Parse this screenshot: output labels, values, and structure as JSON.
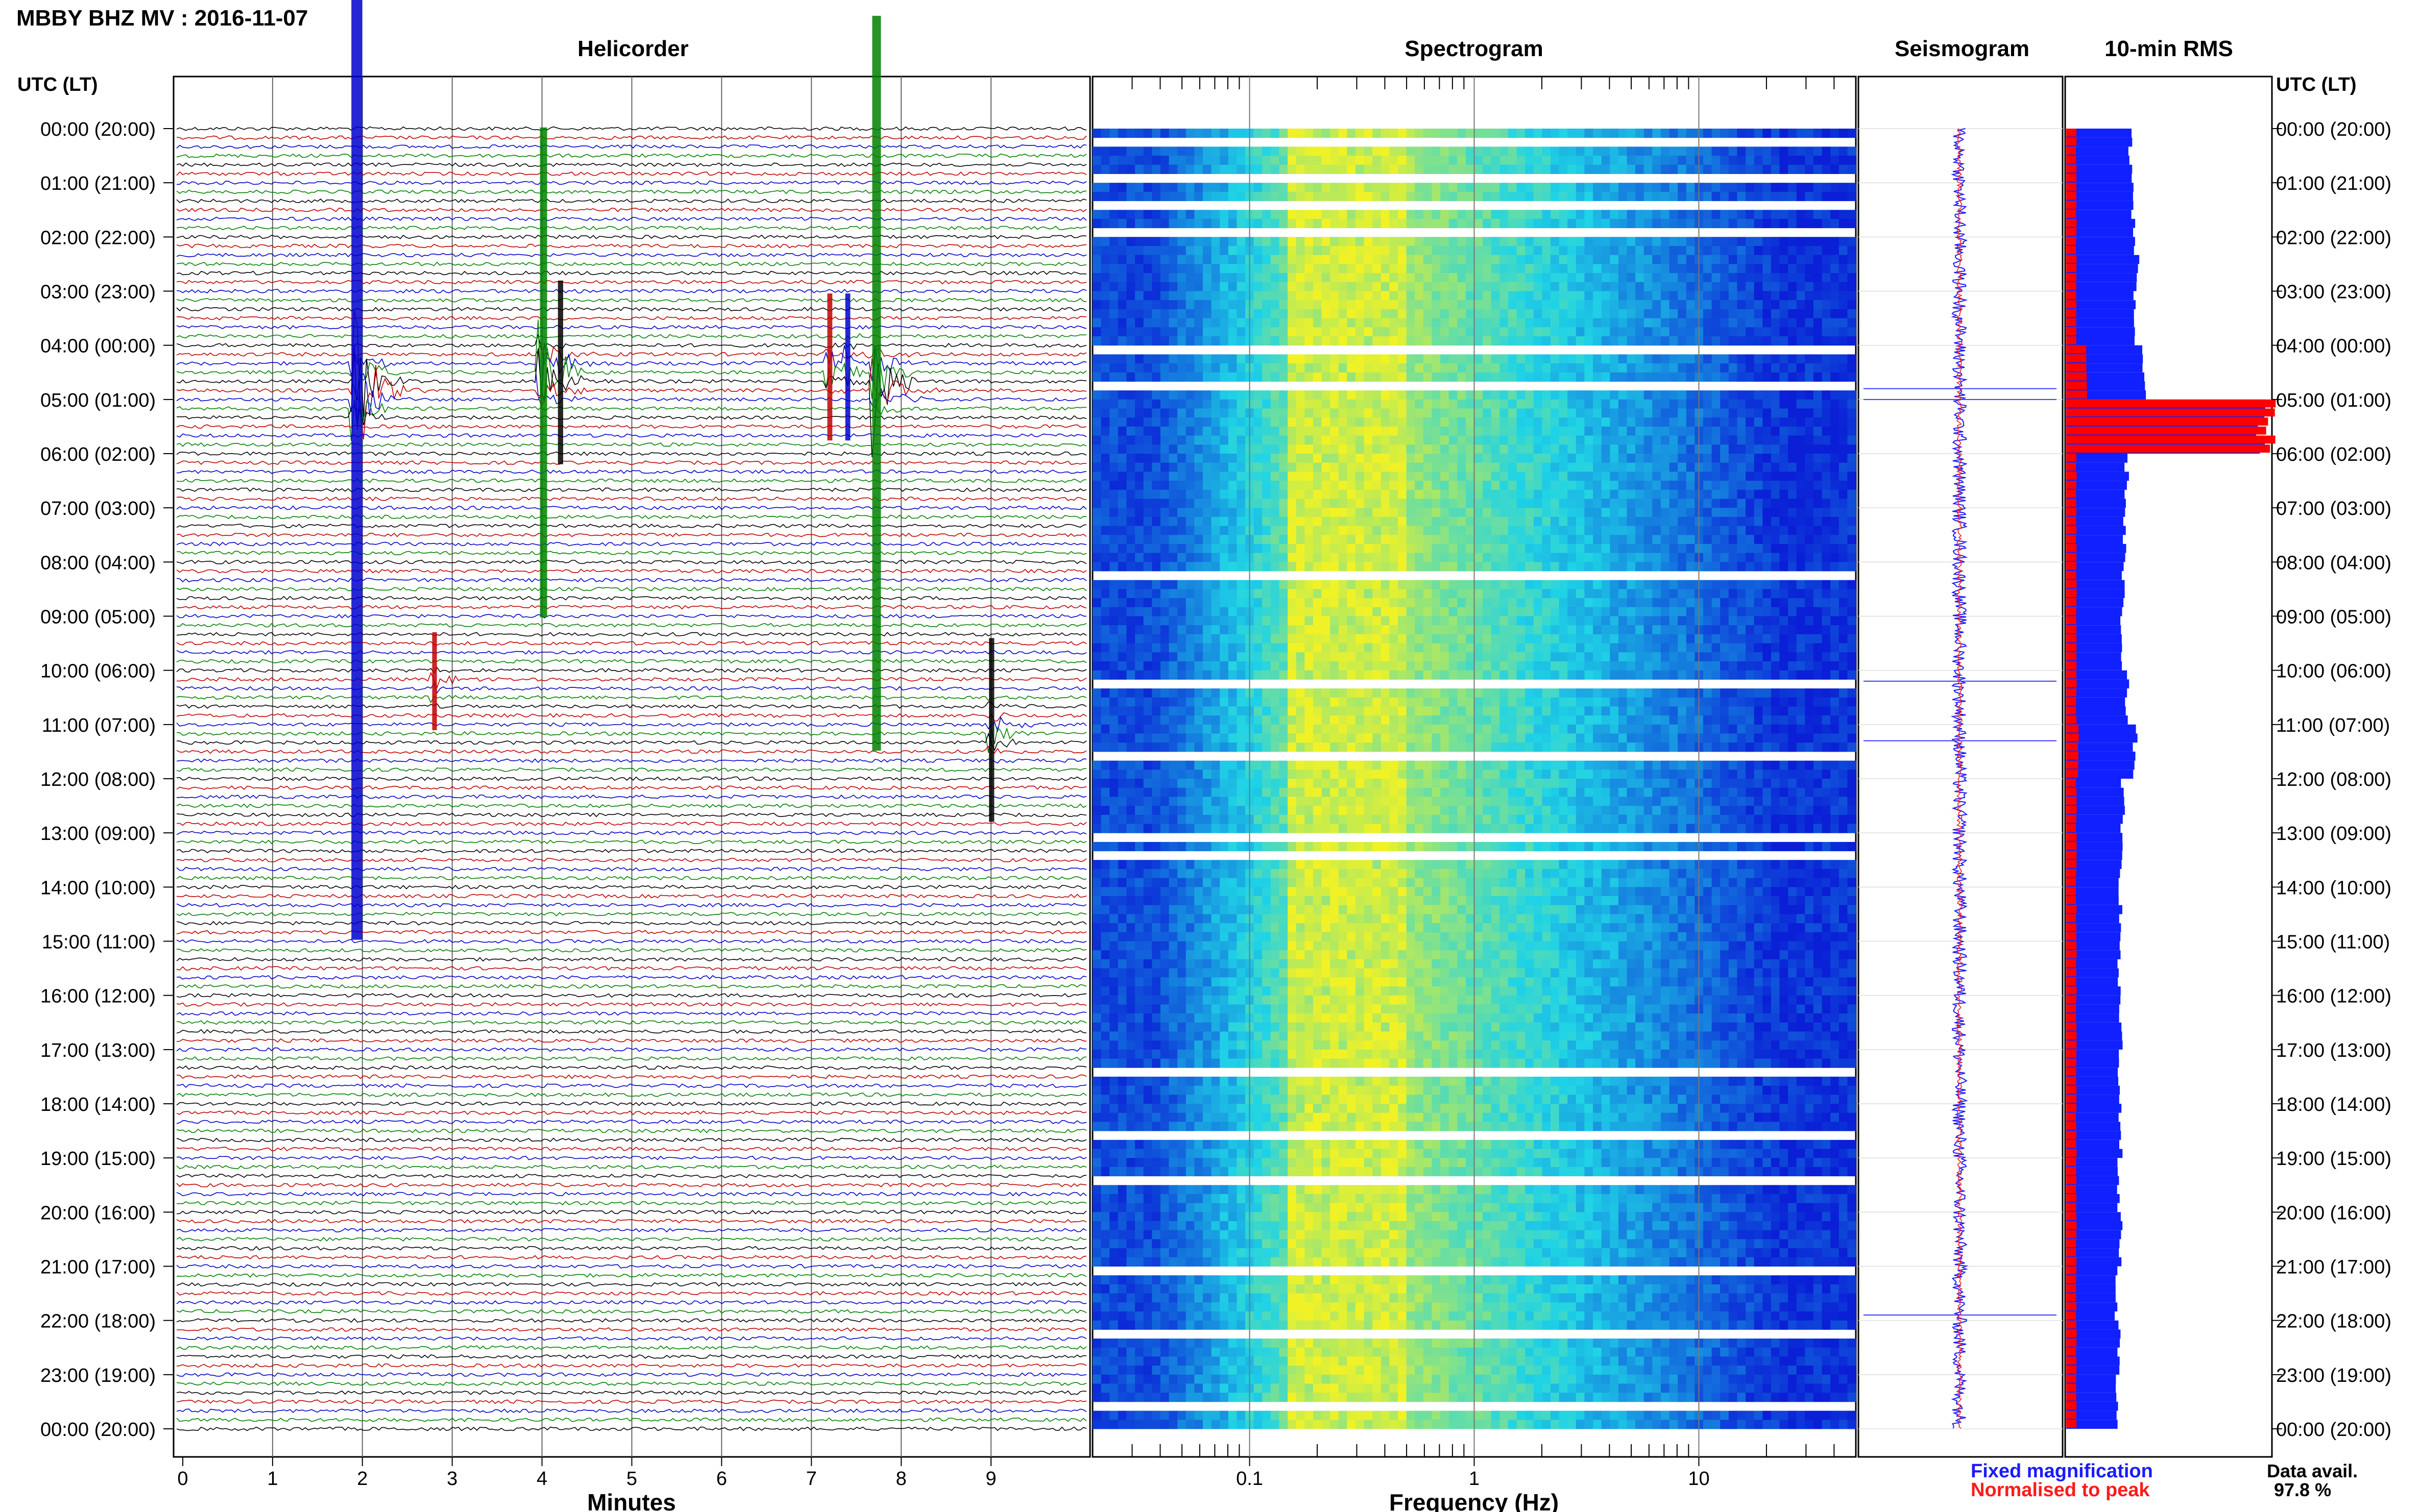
{
  "header": {
    "station_title": "MBBY BHZ MV : 2016-11-07"
  },
  "panels": {
    "helicorder": "Helicorder",
    "spectrogram": "Spectrogram",
    "seismogram": "Seismogram",
    "rms": "10-min RMS"
  },
  "axis": {
    "left_header": "UTC (LT)",
    "right_header": "UTC (LT)",
    "minutes_label": "Minutes",
    "frequency_label": "Frequency (Hz)",
    "minute_ticks": [
      "0",
      "1",
      "2",
      "3",
      "4",
      "5",
      "6",
      "7",
      "8",
      "9"
    ],
    "frequency_ticks": [
      "0.1",
      "1",
      "10"
    ]
  },
  "legend": {
    "fixed": "Fixed magnification",
    "normalised": "Normalised to peak",
    "fixed_color": "#1a1aff",
    "normalised_color": "#ff1a1a"
  },
  "availability": {
    "label": "Data avail.",
    "value": "97.8 %"
  },
  "colors": {
    "trace_cycle": [
      "#000000",
      "#c00000",
      "#0000cc",
      "#008000"
    ],
    "spec_low": "#0a1fd6",
    "spec_mid": "#1fd3e6",
    "spec_high": "#f1f226",
    "rms_fixed": "#1020ff",
    "rms_norm": "#ff0000"
  },
  "chart_data": [
    {
      "type": "line",
      "name": "helicorder",
      "title": "Helicorder",
      "xlabel": "Minutes",
      "xlim": [
        0,
        10
      ],
      "y_ticks_utc": [
        "00:00 (20:00)",
        "01:00 (21:00)",
        "02:00 (22:00)",
        "03:00 (23:00)",
        "04:00 (00:00)",
        "05:00 (01:00)",
        "06:00 (02:00)",
        "07:00 (03:00)",
        "08:00 (04:00)",
        "09:00 (05:00)",
        "10:00 (06:00)",
        "11:00 (07:00)",
        "12:00 (08:00)",
        "13:00 (09:00)",
        "14:00 (10:00)",
        "15:00 (11:00)",
        "16:00 (12:00)",
        "17:00 (13:00)",
        "18:00 (14:00)",
        "19:00 (15:00)",
        "20:00 (16:00)",
        "21:00 (17:00)",
        "22:00 (18:00)",
        "23:00 (19:00)",
        "00:00 (20:00)"
      ],
      "lines_per_hour": 6,
      "events": [
        {
          "minute": 1.9,
          "hour": 4.8,
          "amp": 9.0
        },
        {
          "minute": 4.0,
          "hour": 4.5,
          "amp": 4.0
        },
        {
          "minute": 4.2,
          "hour": 4.5,
          "amp": 1.5
        },
        {
          "minute": 7.2,
          "hour": 4.4,
          "amp": 1.2
        },
        {
          "minute": 7.4,
          "hour": 4.4,
          "amp": 1.2
        },
        {
          "minute": 7.7,
          "hour": 4.7,
          "amp": 6.0
        },
        {
          "minute": 9.0,
          "hour": 11.1,
          "amp": 1.5
        },
        {
          "minute": 2.8,
          "hour": 10.2,
          "amp": 0.8
        }
      ]
    },
    {
      "type": "heatmap",
      "name": "spectrogram",
      "title": "Spectrogram",
      "xlabel": "Frequency (Hz)",
      "x_scale": "log",
      "xlim": [
        0.02,
        50
      ],
      "peak_band_hz": [
        0.15,
        0.5
      ]
    },
    {
      "type": "line",
      "name": "seismogram",
      "title": "Seismogram",
      "events_hour": [
        4.8,
        5.0,
        10.2,
        11.3,
        21.9
      ]
    },
    {
      "type": "bar",
      "name": "rms",
      "title": "10-min RMS",
      "orientation": "horizontal",
      "hours": [
        0,
        1,
        2,
        3,
        4,
        5,
        6,
        7,
        8,
        9,
        10,
        11,
        12,
        13,
        14,
        15,
        16,
        17,
        18,
        19,
        20,
        21,
        22,
        23
      ],
      "fixed_values": [
        0.32,
        0.33,
        0.35,
        0.34,
        0.38,
        0.95,
        0.3,
        0.29,
        0.28,
        0.27,
        0.3,
        0.34,
        0.28,
        0.27,
        0.27,
        0.26,
        0.27,
        0.26,
        0.27,
        0.26,
        0.27,
        0.25,
        0.26,
        0.25
      ],
      "normalised_values": [
        0.05,
        0.05,
        0.05,
        0.05,
        0.1,
        1.0,
        0.05,
        0.05,
        0.05,
        0.05,
        0.05,
        0.06,
        0.05,
        0.05,
        0.05,
        0.05,
        0.05,
        0.05,
        0.05,
        0.05,
        0.05,
        0.05,
        0.05,
        0.05
      ]
    }
  ]
}
